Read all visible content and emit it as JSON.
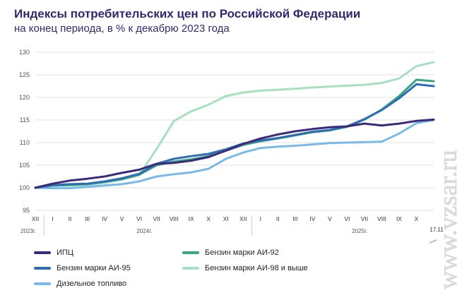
{
  "header": {
    "title": "Индексы потребительских цен по Российской Федерации",
    "subtitle": "на конец периода, в % к декабрю 2023 года"
  },
  "watermark": "www.vzsar.ru",
  "date_marker": "17.11",
  "year_labels": [
    "2023г.",
    "2024г.",
    "2025г."
  ],
  "legend": [
    {
      "label": "ИПЦ",
      "color": "#3b2a7a"
    },
    {
      "label": "Бензин марки АИ-92",
      "color": "#3aa584"
    },
    {
      "label": "Бензин марки АИ-95",
      "color": "#2e6db4"
    },
    {
      "label": "Бензин марки АИ-98 и  выше",
      "color": "#a6e1bf"
    },
    {
      "label": "Дизельное топливо",
      "color": "#79b9e9"
    }
  ],
  "chart_data": {
    "type": "line",
    "title": "Индексы потребительских цен по Российской Федерации",
    "subtitle": "на конец периода, в % к декабрю 2023 года",
    "x": [
      "XII",
      "I",
      "II",
      "III",
      "IV",
      "V",
      "VI",
      "VII",
      "VIII",
      "IX",
      "X",
      "XI",
      "XII",
      "I",
      "II",
      "III",
      "IV",
      "V",
      "VI",
      "VII",
      "VIII",
      "IX",
      "X",
      "17.11"
    ],
    "x_years": [
      "2023г.",
      "2024г.",
      "2025г."
    ],
    "ylim": [
      95,
      130
    ],
    "yticks": [
      95,
      100,
      105,
      110,
      115,
      120,
      125,
      130
    ],
    "grid": true,
    "legend_position": "bottom",
    "series": [
      {
        "name": "ИПЦ",
        "color": "#3b2a7a",
        "values": [
          100,
          100.9,
          101.6,
          102.0,
          102.5,
          103.3,
          104.0,
          105.3,
          105.5,
          106.0,
          106.8,
          108.2,
          109.7,
          110.9,
          111.8,
          112.5,
          113.0,
          113.4,
          113.6,
          114.2,
          113.8,
          114.2,
          114.8,
          115.1
        ]
      },
      {
        "name": "Бензин марки АИ-92",
        "color": "#3aa584",
        "values": [
          100,
          100.5,
          100.6,
          100.8,
          101.3,
          101.9,
          102.9,
          105.0,
          105.8,
          106.3,
          107.0,
          108.2,
          109.5,
          110.3,
          110.9,
          111.6,
          112.3,
          112.7,
          113.5,
          115.1,
          117.3,
          120.3,
          123.9,
          123.6
        ]
      },
      {
        "name": "Бензин марки АИ-95",
        "color": "#2e6db4",
        "values": [
          100,
          100.6,
          100.8,
          100.9,
          101.4,
          102.1,
          103.1,
          105.3,
          106.4,
          107.0,
          107.5,
          108.5,
          109.8,
          110.5,
          111.0,
          111.7,
          112.4,
          112.8,
          113.6,
          115.2,
          117.2,
          119.8,
          122.9,
          122.5
        ]
      },
      {
        "name": "Бензин марки АИ-98 и  выше",
        "color": "#a6e1bf",
        "values": [
          100,
          100.4,
          100.5,
          100.7,
          101.1,
          101.8,
          102.8,
          108.6,
          114.8,
          116.9,
          118.4,
          120.3,
          121.1,
          121.5,
          121.7,
          121.9,
          122.2,
          122.4,
          122.6,
          122.8,
          123.2,
          124.2,
          126.9,
          127.8
        ]
      },
      {
        "name": "Дизельное топливо",
        "color": "#79b9e9",
        "values": [
          100,
          99.9,
          99.9,
          100.2,
          100.5,
          100.8,
          101.4,
          102.5,
          103.0,
          103.4,
          104.2,
          106.4,
          107.8,
          108.8,
          109.1,
          109.3,
          109.6,
          109.9,
          110.0,
          110.1,
          110.2,
          112.0,
          114.3,
          115.0
        ]
      }
    ]
  }
}
